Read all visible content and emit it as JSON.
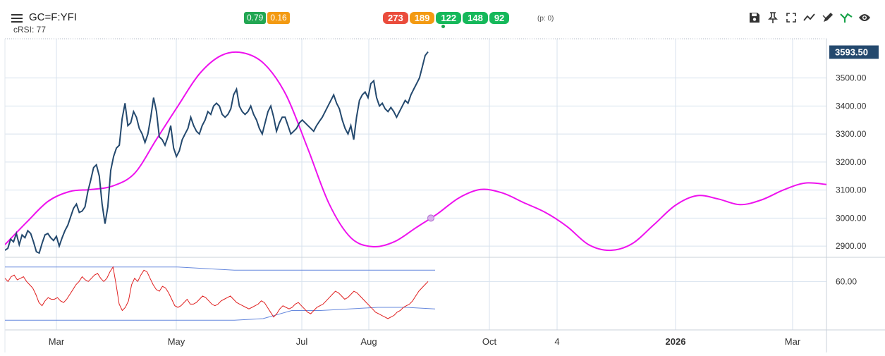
{
  "header": {
    "symbol": "GC=F:YFI",
    "subline": "cRSI: 77",
    "badges_left": [
      {
        "label": "0.79",
        "color": "#22a652"
      },
      {
        "label": "0.16",
        "color": "#f39a12"
      }
    ],
    "badges_right": [
      {
        "label": "273",
        "color": "#ea4c3c"
      },
      {
        "label": "189",
        "color": "#f39a12"
      },
      {
        "label": "122",
        "color": "#15b85a"
      },
      {
        "label": "148",
        "color": "#15b85a"
      },
      {
        "label": "92",
        "color": "#15b85a"
      }
    ],
    "pvalue": "(p: 0)"
  },
  "toolbar": {
    "icons": [
      "save-icon",
      "pin-icon",
      "fullscreen-icon",
      "trend-icon",
      "draw-icon",
      "signal-icon",
      "eye-icon"
    ]
  },
  "chart_data": {
    "type": "line",
    "colors": {
      "price": "#24496e",
      "cycle": "#ee12ee",
      "rsi": "#e02020",
      "bands": "#6688dd",
      "grid": "#d7e2ee",
      "last_label": "#24496e"
    },
    "x_ticks": [
      "Mar",
      "May",
      "Jul",
      "Aug",
      "Oct",
      "4",
      "2026",
      "Mar"
    ],
    "y_ticks": [
      "3500.00",
      "3400.00",
      "3300.00",
      "3200.00",
      "3100.00",
      "3000.00",
      "2900.00"
    ],
    "y_range": [
      2860,
      3640
    ],
    "last_price_label": "3593.50",
    "series": [
      {
        "role": "price",
        "x_range": [
          0,
          600
        ],
        "values": [
          2885,
          2892,
          2925,
          2915,
          2945,
          2905,
          2940,
          2930,
          2955,
          2945,
          2915,
          2880,
          2875,
          2910,
          2940,
          2945,
          2930,
          2920,
          2935,
          2900,
          2930,
          2955,
          2975,
          3005,
          3035,
          3050,
          3020,
          3025,
          3040,
          3095,
          3135,
          3180,
          3190,
          3150,
          3050,
          2980,
          3040,
          3170,
          3220,
          3250,
          3260,
          3355,
          3410,
          3330,
          3340,
          3380,
          3360,
          3320,
          3300,
          3270,
          3300,
          3360,
          3430,
          3380,
          3290,
          3280,
          3260,
          3290,
          3330,
          3250,
          3220,
          3240,
          3280,
          3300,
          3320,
          3360,
          3330,
          3310,
          3300,
          3330,
          3350,
          3380,
          3370,
          3400,
          3410,
          3400,
          3370,
          3360,
          3370,
          3390,
          3440,
          3460,
          3400,
          3380,
          3370,
          3380,
          3400,
          3370,
          3350,
          3320,
          3300,
          3340,
          3380,
          3400,
          3360,
          3310,
          3340,
          3360,
          3360,
          3330,
          3300,
          3310,
          3320,
          3340,
          3350,
          3340,
          3330,
          3320,
          3310,
          3330,
          3345,
          3360,
          3380,
          3400,
          3420,
          3440,
          3410,
          3390,
          3350,
          3320,
          3300,
          3330,
          3280,
          3360,
          3420,
          3440,
          3450,
          3430,
          3480,
          3490,
          3430,
          3400,
          3410,
          3390,
          3380,
          3395,
          3380,
          3360,
          3380,
          3400,
          3420,
          3410,
          3440,
          3460,
          3480,
          3500,
          3540,
          3580,
          3593.5
        ]
      },
      {
        "role": "cycle",
        "x_range": [
          0,
          1165
        ],
        "values": [
          2905,
          2985,
          3060,
          3095,
          3102,
          3115,
          3160,
          3280,
          3400,
          3515,
          3580,
          3590,
          3550,
          3440,
          3250,
          3050,
          2930,
          2898,
          2915,
          2965,
          3015,
          3072,
          3102,
          3090,
          3055,
          3020,
          2970,
          2905,
          2885,
          2908,
          2975,
          3045,
          3080,
          3068,
          3048,
          3065,
          3100,
          3125,
          3120
        ]
      },
      {
        "role": "rsi",
        "x_range": [
          0,
          600
        ],
        "values": [
          62,
          60,
          63,
          64,
          61,
          62,
          63,
          60,
          58,
          56,
          52,
          47,
          45,
          48,
          50,
          49,
          49,
          50,
          48,
          47,
          49,
          52,
          55,
          58,
          60,
          63,
          61,
          60,
          62,
          64,
          65,
          62,
          60,
          62,
          66,
          69,
          58,
          46,
          42,
          44,
          48,
          58,
          62,
          60,
          64,
          67,
          66,
          62,
          58,
          55,
          54,
          57,
          56,
          53,
          49,
          45,
          44,
          45,
          47,
          49,
          46,
          46,
          47,
          49,
          51,
          50,
          48,
          46,
          45,
          46,
          48,
          49,
          50,
          51,
          49,
          47,
          46,
          45,
          44,
          43,
          44,
          45,
          46,
          48,
          47,
          44,
          41,
          38,
          40,
          43,
          45,
          44,
          43,
          44,
          46,
          47,
          45,
          43,
          41,
          40,
          42,
          44,
          45,
          46,
          48,
          50,
          52,
          54,
          53,
          51,
          49,
          50,
          52,
          54,
          53,
          51,
          49,
          47,
          45,
          43,
          41,
          40,
          39,
          38,
          37,
          38,
          39,
          41,
          42,
          44,
          45,
          46,
          48,
          51,
          54,
          56,
          58,
          60
        ]
      },
      {
        "role": "upper_band",
        "x_range": [
          0,
          610
        ],
        "values": [
          69,
          69,
          69,
          69,
          69,
          69,
          69,
          68,
          67,
          67,
          67,
          67,
          67,
          67,
          67,
          67
        ]
      },
      {
        "role": "lower_band",
        "x_range": [
          0,
          610
        ],
        "values": [
          36,
          36,
          36,
          36,
          36,
          36,
          36,
          36,
          36,
          37,
          42,
          42,
          43,
          44,
          44,
          43
        ]
      }
    ],
    "rsi_y_ticks": [
      "60.00"
    ],
    "rsi_y_range": [
      30,
      75
    ]
  }
}
